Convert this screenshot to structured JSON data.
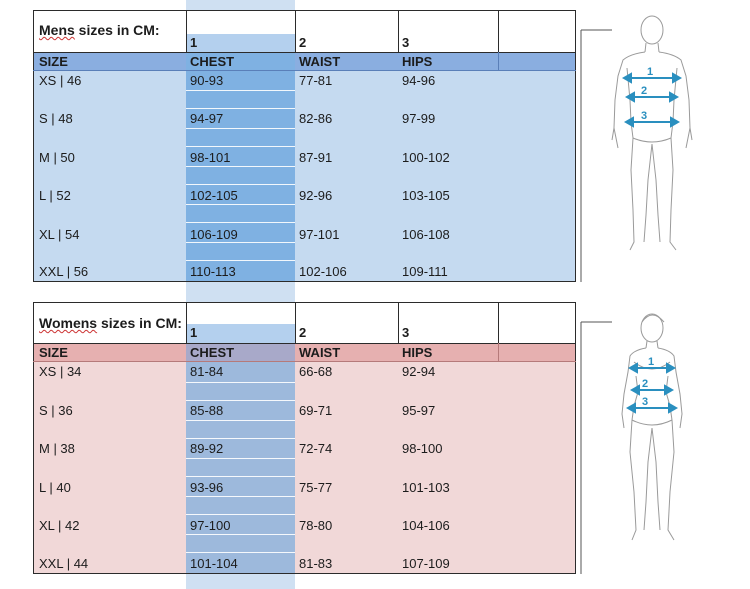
{
  "men": {
    "title_prefix": "Mens",
    "title_rest": " sizes in CM:",
    "col_numbers": [
      "1",
      "2",
      "3"
    ],
    "headers": [
      "SIZE",
      "CHEST",
      "WAIST",
      "HIPS"
    ],
    "rows": [
      [
        "XS | 46",
        "90-93",
        "77-81",
        "94-96"
      ],
      [
        "S | 48",
        "94-97",
        "82-86",
        "97-99"
      ],
      [
        "M | 50",
        "98-101",
        "87-91",
        "100-102"
      ],
      [
        "L | 52",
        "102-105",
        "92-96",
        "103-105"
      ],
      [
        "XL | 54",
        "106-109",
        "97-101",
        "106-108"
      ],
      [
        "XXL | 56",
        "110-113",
        "102-106",
        "109-111"
      ]
    ]
  },
  "women": {
    "title_prefix": "Womens",
    "title_rest": " sizes in CM:",
    "col_numbers": [
      "1",
      "2",
      "3"
    ],
    "headers": [
      "SIZE",
      "CHEST",
      "WAIST",
      "HIPS"
    ],
    "rows": [
      [
        "XS | 34",
        "81-84",
        "66-68",
        "92-94"
      ],
      [
        "S | 36",
        "85-88",
        "69-71",
        "95-97"
      ],
      [
        "M | 38",
        "89-92",
        "72-74",
        "98-100"
      ],
      [
        "L | 40",
        "93-96",
        "75-77",
        "101-103"
      ],
      [
        "XL | 42",
        "97-100",
        "78-80",
        "104-106"
      ],
      [
        "XXL | 44",
        "101-104",
        "81-83",
        "107-109"
      ]
    ]
  },
  "figure_markers": [
    "1",
    "2",
    "3"
  ],
  "colors": {
    "men_panel": "#c5daf0",
    "men_header": "#8aaee0",
    "women_panel": "#f1d8d8",
    "women_header": "#e6b0b0",
    "chest_column": "#79aee0",
    "arrow": "#2a8fbf"
  }
}
